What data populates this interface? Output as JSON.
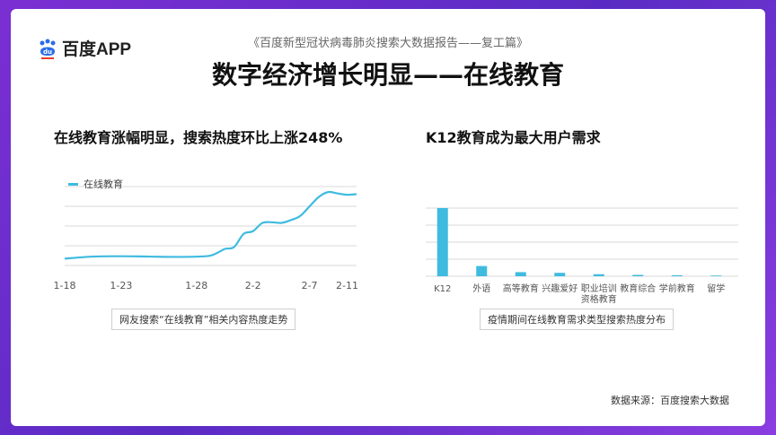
{
  "header": {
    "logo_text": "百度APP",
    "subtitle": "《百度新型冠状病毒肺炎搜索大数据报告——复工篇》",
    "title": "数字经济增长明显——在线教育"
  },
  "left_section": {
    "title": "在线教育涨幅明显，搜索热度环比上涨248%",
    "caption": "网友搜索“在线教育”相关内容热度走势"
  },
  "right_section": {
    "title": "K12教育成为最大用户需求",
    "caption": "疫情期间在线教育需求类型搜索热度分布"
  },
  "footer": {
    "source": "数据来源：百度搜索大数据"
  },
  "colors": {
    "series": "#3fbbe0",
    "grid": "#d9d9d9",
    "axis_text": "#555555",
    "logo_blue": "#2a6ee8",
    "logo_red": "#e63b2e"
  },
  "chart_data": [
    {
      "type": "line",
      "x_ticks": [
        "1-18",
        "1-23",
        "1-28",
        "2-2",
        "2-7",
        "2-11"
      ],
      "series": [
        {
          "name": "在线教育",
          "x": [
            0,
            3,
            6,
            9,
            12,
            15,
            16,
            17,
            18,
            19,
            20,
            21,
            22,
            23,
            24,
            25,
            26,
            27,
            28,
            29,
            30,
            31
          ],
          "values": [
            10,
            13,
            13.5,
            13,
            12.5,
            13.5,
            17,
            24,
            27,
            46,
            50,
            62,
            63,
            62,
            66,
            72,
            86,
            100,
            107,
            105,
            103,
            104
          ]
        }
      ],
      "tick_positions": [
        0,
        6,
        14,
        20,
        26,
        30
      ],
      "xlim": [
        0,
        31
      ],
      "ylim": [
        0,
        115
      ],
      "grid": true,
      "legend": "top-left"
    },
    {
      "type": "bar",
      "categories": [
        "K12",
        "外语",
        "高等教育",
        "兴趣爱好",
        "职业培训\n资格教育",
        "教育综合",
        "学前教育",
        "留学"
      ],
      "values": [
        100,
        15,
        6,
        5,
        3,
        2,
        1.5,
        1
      ],
      "ylim": [
        0,
        100
      ],
      "grid": true
    }
  ]
}
